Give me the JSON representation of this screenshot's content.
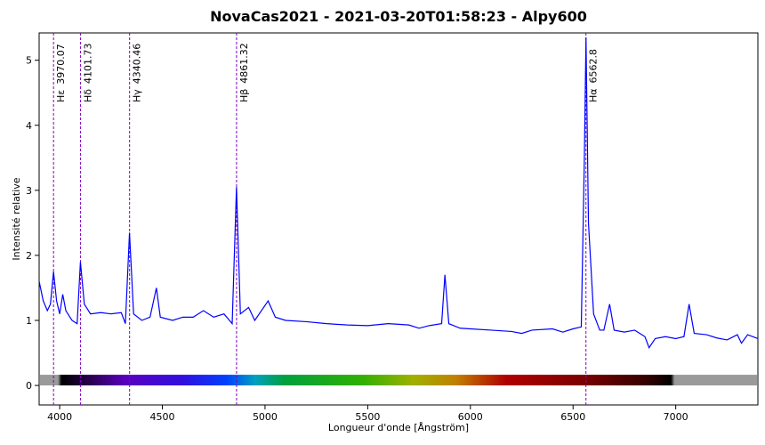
{
  "chart_data": {
    "type": "line",
    "title": "NovaCas2021 - 2021-03-20T01:58:23 - Alpy600",
    "x_label": "Longueur d'onde [Ångström]",
    "y_label": "Intensité relative",
    "xlim": [
      3900,
      7400
    ],
    "xticks": [
      4000,
      4500,
      5000,
      5500,
      6000,
      6500,
      7000
    ],
    "ylim": [
      -0.3,
      5.42
    ],
    "yticks": [
      0,
      1,
      2,
      3,
      4,
      5
    ],
    "color": "#0000ff",
    "annotations": [
      {
        "label": "Hε",
        "x": 3970.07
      },
      {
        "label": "Hδ",
        "x": 4101.73
      },
      {
        "label": "Hγ",
        "x": 4340.46
      },
      {
        "label": "Hβ",
        "x": 4861.32
      },
      {
        "label": "Hα",
        "x": 6562.8
      }
    ],
    "annotation_color": "#8000c0",
    "x": [
      3900,
      3920,
      3940,
      3955,
      3970,
      3985,
      4000,
      4015,
      4030,
      4060,
      4085,
      4101,
      4120,
      4150,
      4200,
      4250,
      4300,
      4320,
      4340,
      4360,
      4400,
      4440,
      4471,
      4490,
      4550,
      4600,
      4650,
      4700,
      4750,
      4800,
      4840,
      4861,
      4880,
      4920,
      4950,
      5015,
      5050,
      5100,
      5200,
      5300,
      5400,
      5500,
      5600,
      5700,
      5750,
      5800,
      5860,
      5876,
      5895,
      5950,
      6000,
      6100,
      6200,
      6250,
      6300,
      6400,
      6450,
      6500,
      6540,
      6555,
      6563,
      6575,
      6600,
      6630,
      6650,
      6678,
      6700,
      6750,
      6800,
      6850,
      6870,
      6900,
      6950,
      7000,
      7040,
      7065,
      7090,
      7150,
      7200,
      7250,
      7300,
      7320,
      7350,
      7400
    ],
    "values": [
      1.6,
      1.3,
      1.15,
      1.25,
      1.75,
      1.3,
      1.1,
      1.4,
      1.15,
      1.0,
      0.95,
      1.9,
      1.25,
      1.1,
      1.12,
      1.1,
      1.12,
      0.95,
      2.35,
      1.1,
      1.0,
      1.05,
      1.5,
      1.05,
      1.0,
      1.05,
      1.05,
      1.15,
      1.05,
      1.1,
      0.95,
      3.05,
      1.1,
      1.2,
      1.0,
      1.3,
      1.05,
      1.0,
      0.98,
      0.95,
      0.93,
      0.92,
      0.95,
      0.93,
      0.88,
      0.92,
      0.95,
      1.7,
      0.95,
      0.88,
      0.87,
      0.85,
      0.83,
      0.8,
      0.85,
      0.87,
      0.82,
      0.87,
      0.9,
      3.5,
      5.35,
      2.5,
      1.1,
      0.85,
      0.85,
      1.25,
      0.85,
      0.82,
      0.85,
      0.75,
      0.58,
      0.72,
      0.75,
      0.72,
      0.75,
      1.25,
      0.8,
      0.78,
      0.73,
      0.7,
      0.78,
      0.65,
      0.78,
      0.72
    ]
  }
}
